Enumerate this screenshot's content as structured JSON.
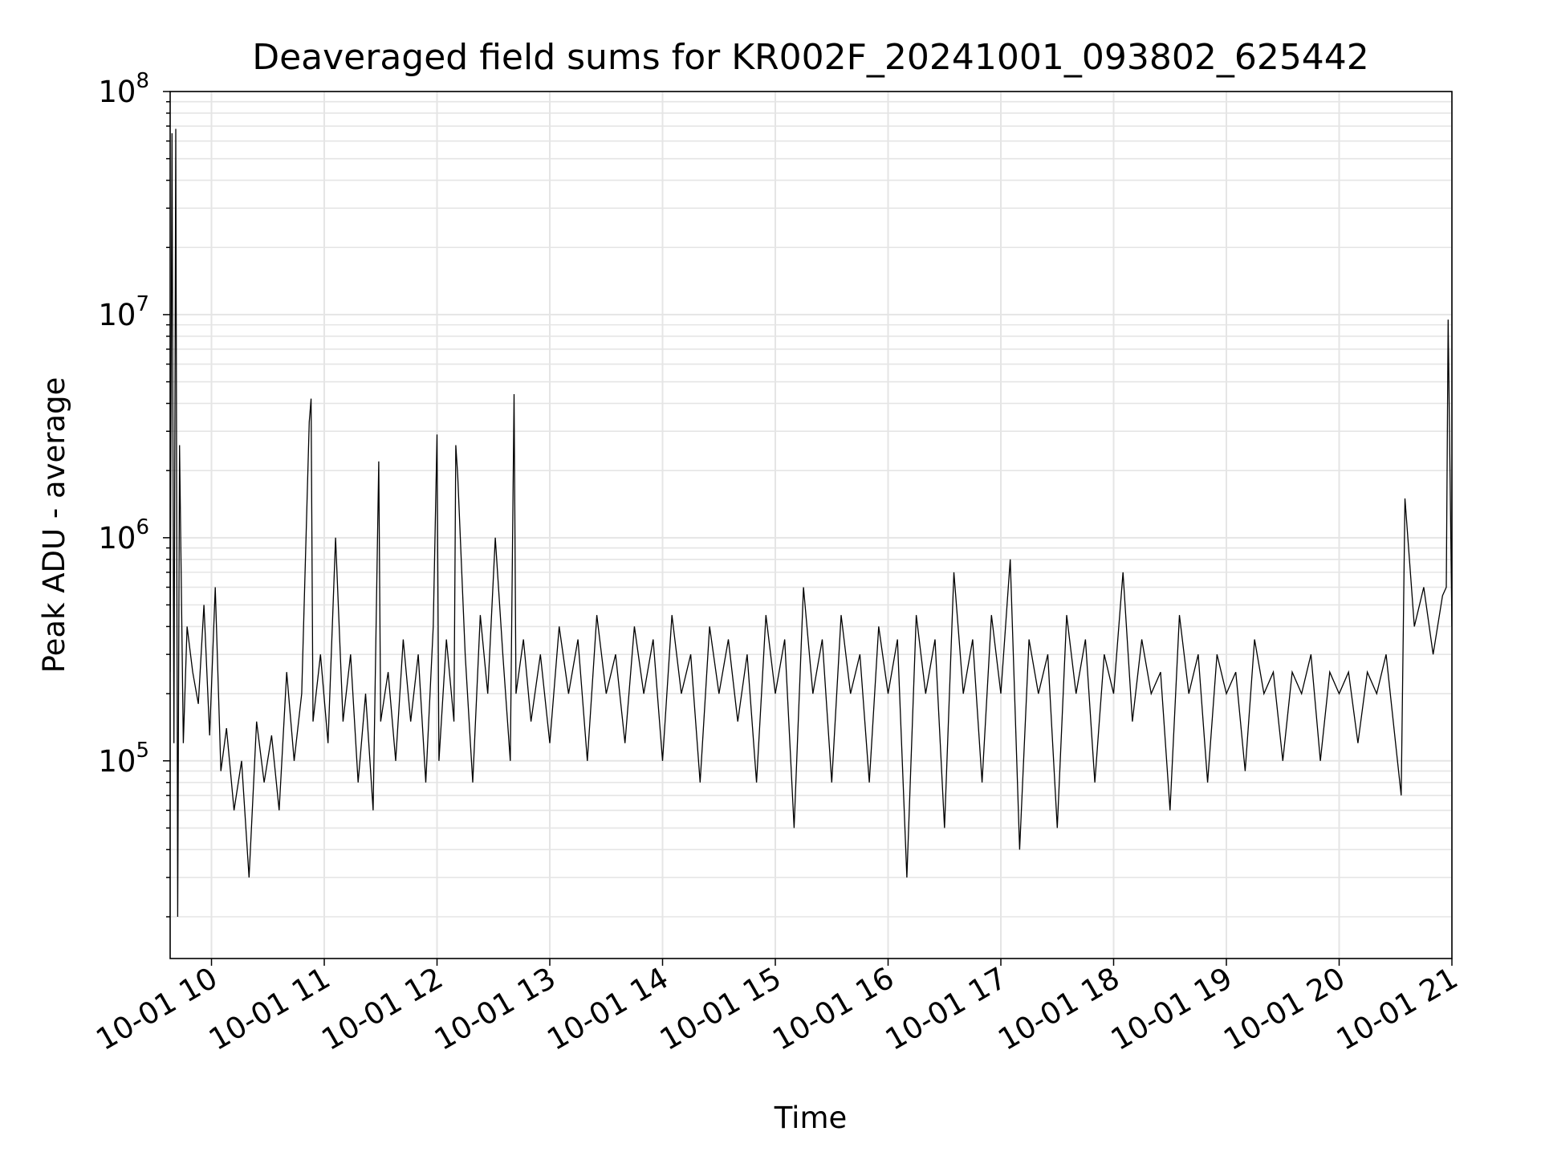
{
  "chart_data": {
    "type": "line",
    "title": "Deaveraged field sums for KR002F_20241001_093802_625442",
    "xlabel": "Time",
    "ylabel": "Peak ADU - average",
    "x_range": [
      "2024-10-01T09:38:00",
      "2024-10-01T21:00:00"
    ],
    "y_range": [
      13000,
      100000000
    ],
    "yscale": "log",
    "grid": true,
    "line_color": "#000000",
    "grid_color": "#e5e5e5",
    "x_tick_labels": [
      "10-01 10",
      "10-01 11",
      "10-01 12",
      "10-01 13",
      "10-01 14",
      "10-01 15",
      "10-01 16",
      "10-01 17",
      "10-01 18",
      "10-01 19",
      "10-01 20",
      "10-01 21"
    ],
    "x_tick_hours": [
      10,
      11,
      12,
      13,
      14,
      15,
      16,
      17,
      18,
      19,
      20,
      21
    ],
    "y_ticks": [
      {
        "value": 100000,
        "base": "10",
        "exp": "5"
      },
      {
        "value": 1000000,
        "base": "10",
        "exp": "6"
      },
      {
        "value": 10000000,
        "base": "10",
        "exp": "7"
      },
      {
        "value": 100000000,
        "base": "10",
        "exp": "8"
      }
    ],
    "series": [
      {
        "x": [
          "09:38",
          "09:39",
          "09:40",
          "09:41",
          "09:42",
          "09:43",
          "09:45",
          "09:47",
          "09:50",
          "09:53",
          "09:56",
          "09:59",
          "10:02",
          "10:05",
          "10:08",
          "10:12",
          "10:16",
          "10:20",
          "10:24",
          "10:28",
          "10:32",
          "10:36",
          "10:40",
          "10:44",
          "10:48",
          "10:52",
          "10:53",
          "10:54",
          "10:58",
          "11:02",
          "11:06",
          "11:10",
          "11:14",
          "11:18",
          "11:22",
          "11:26",
          "11:29",
          "11:30",
          "11:34",
          "11:38",
          "11:42",
          "11:46",
          "11:50",
          "11:54",
          "11:58",
          "12:00",
          "12:01",
          "12:05",
          "12:09",
          "12:10",
          "12:11",
          "12:15",
          "12:19",
          "12:23",
          "12:27",
          "12:31",
          "12:35",
          "12:39",
          "12:41",
          "12:42",
          "12:46",
          "12:50",
          "12:55",
          "13:00",
          "13:05",
          "13:10",
          "13:15",
          "13:20",
          "13:25",
          "13:30",
          "13:35",
          "13:40",
          "13:45",
          "13:50",
          "13:55",
          "14:00",
          "14:05",
          "14:10",
          "14:15",
          "14:20",
          "14:25",
          "14:30",
          "14:35",
          "14:40",
          "14:45",
          "14:50",
          "14:55",
          "15:00",
          "15:05",
          "15:10",
          "15:15",
          "15:20",
          "15:25",
          "15:30",
          "15:35",
          "15:40",
          "15:45",
          "15:50",
          "15:55",
          "16:00",
          "16:05",
          "16:10",
          "16:15",
          "16:20",
          "16:25",
          "16:30",
          "16:35",
          "16:40",
          "16:45",
          "16:50",
          "16:55",
          "17:00",
          "17:05",
          "17:10",
          "17:15",
          "17:20",
          "17:25",
          "17:30",
          "17:35",
          "17:40",
          "17:45",
          "17:50",
          "17:55",
          "18:00",
          "18:05",
          "18:10",
          "18:15",
          "18:20",
          "18:25",
          "18:30",
          "18:35",
          "18:40",
          "18:45",
          "18:50",
          "18:55",
          "19:00",
          "19:05",
          "19:10",
          "19:15",
          "19:20",
          "19:25",
          "19:30",
          "19:35",
          "19:40",
          "19:45",
          "19:50",
          "19:55",
          "20:00",
          "20:05",
          "20:10",
          "20:15",
          "20:20",
          "20:25",
          "20:30",
          "20:33",
          "20:35",
          "20:40",
          "20:45",
          "20:50",
          "20:55",
          "20:57",
          "20:58",
          "21:00"
        ],
        "y": [
          250000,
          65000000,
          120000,
          68000000,
          20000,
          2600000,
          120000,
          400000,
          250000,
          180000,
          500000,
          130000,
          600000,
          90000,
          140000,
          60000,
          100000,
          30000,
          150000,
          80000,
          130000,
          60000,
          250000,
          100000,
          200000,
          3300000,
          4200000,
          150000,
          300000,
          120000,
          1000000,
          150000,
          300000,
          80000,
          200000,
          60000,
          2200000,
          150000,
          250000,
          100000,
          350000,
          150000,
          300000,
          80000,
          400000,
          2900000,
          100000,
          350000,
          150000,
          2600000,
          1900000,
          300000,
          80000,
          450000,
          200000,
          1000000,
          300000,
          100000,
          4400000,
          200000,
          350000,
          150000,
          300000,
          120000,
          400000,
          200000,
          350000,
          100000,
          450000,
          200000,
          300000,
          120000,
          400000,
          200000,
          350000,
          100000,
          450000,
          200000,
          300000,
          80000,
          400000,
          200000,
          350000,
          150000,
          300000,
          80000,
          450000,
          200000,
          350000,
          50000,
          600000,
          200000,
          350000,
          80000,
          450000,
          200000,
          300000,
          80000,
          400000,
          200000,
          350000,
          30000,
          450000,
          200000,
          350000,
          50000,
          700000,
          200000,
          350000,
          80000,
          450000,
          200000,
          800000,
          40000,
          350000,
          200000,
          300000,
          50000,
          450000,
          200000,
          350000,
          80000,
          300000,
          200000,
          700000,
          150000,
          350000,
          200000,
          250000,
          60000,
          450000,
          200000,
          300000,
          80000,
          300000,
          200000,
          250000,
          90000,
          350000,
          200000,
          250000,
          100000,
          250000,
          200000,
          300000,
          100000,
          250000,
          200000,
          250000,
          120000,
          250000,
          200000,
          300000,
          120000,
          70000,
          1500000,
          400000,
          600000,
          300000,
          550000,
          600000,
          9500000,
          400000
        ]
      }
    ]
  }
}
